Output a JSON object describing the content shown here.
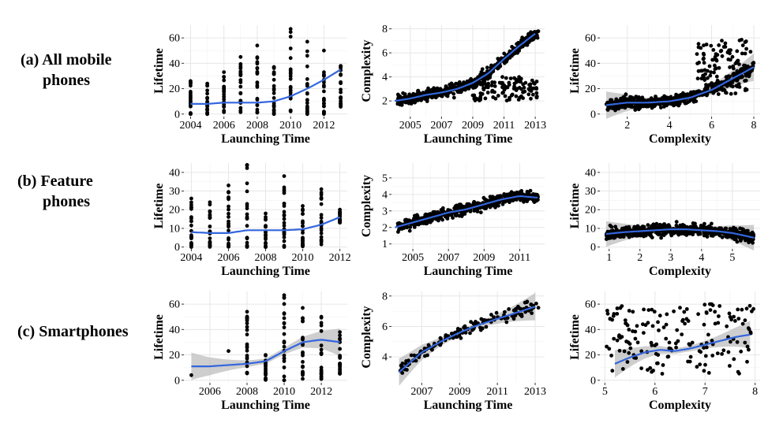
{
  "row_labels": [
    {
      "line1": "(a) All mobile",
      "line2": "phones"
    },
    {
      "line1": "(b) Feature",
      "line2": "phones"
    },
    {
      "line1": "(c) Smartphones",
      "line2": ""
    }
  ],
  "colors": {
    "points": "#000000",
    "smooth": "#3366dd",
    "band": "#bdbdbd",
    "panel_bg": "#ffffff",
    "grid": "#e6e6e6",
    "axis": "#333333"
  },
  "chart_data": [
    {
      "id": "a1",
      "type": "scatter",
      "xlabel": "Launching Time",
      "ylabel": "Lifetime",
      "xlim": [
        2003.6,
        2013.4
      ],
      "ylim": [
        -2,
        70
      ],
      "xticks": [
        2004,
        2006,
        2008,
        2010,
        2012
      ],
      "yticks": [
        0,
        20,
        40,
        60
      ],
      "x": [
        2004,
        2005,
        2006,
        2007,
        2008,
        2009,
        2010,
        2011,
        2012,
        2013
      ],
      "y_range": [
        [
          0,
          26
        ],
        [
          0,
          24
        ],
        [
          0,
          33
        ],
        [
          0,
          45
        ],
        [
          0,
          54
        ],
        [
          0,
          37
        ],
        [
          0,
          67
        ],
        [
          0,
          57
        ],
        [
          0,
          50
        ],
        [
          5,
          38
        ]
      ],
      "smooth": {
        "x": [
          2004,
          2005,
          2006,
          2007,
          2008,
          2009,
          2010,
          2011,
          2012,
          2013
        ],
        "y": [
          8,
          8,
          9,
          9,
          9,
          10,
          14,
          20,
          27,
          35
        ]
      },
      "band": false
    },
    {
      "id": "a2",
      "type": "scatter",
      "xlabel": "Launching Time",
      "ylabel": "Complexity",
      "xlim": [
        2003.8,
        2013.6
      ],
      "ylim": [
        0.7,
        8.3
      ],
      "xticks": [
        2005,
        2007,
        2009,
        2011,
        2013
      ],
      "yticks": [
        2,
        4,
        6,
        8
      ],
      "smooth": {
        "x": [
          2004,
          2005,
          2006,
          2007,
          2008,
          2009,
          2010,
          2011,
          2012,
          2013
        ],
        "y": [
          2.0,
          2.2,
          2.5,
          2.7,
          3.0,
          3.5,
          4.3,
          5.5,
          6.6,
          7.6
        ]
      },
      "band": false
    },
    {
      "id": "a3",
      "type": "scatter",
      "xlabel": "Complexity",
      "ylabel": "Lifetime",
      "xlim": [
        0.7,
        8.3
      ],
      "ylim": [
        -2,
        70
      ],
      "xticks": [
        2,
        4,
        6,
        8
      ],
      "yticks": [
        0,
        20,
        40,
        60
      ],
      "smooth": {
        "x": [
          1,
          2,
          3,
          4,
          5,
          6,
          7,
          8
        ],
        "y": [
          7,
          9,
          9,
          10,
          13,
          19,
          28,
          37
        ]
      },
      "band": true
    },
    {
      "id": "b1",
      "type": "scatter",
      "xlabel": "Launching Time",
      "ylabel": "Lifetime",
      "xlim": [
        2003.6,
        2012.4
      ],
      "ylim": [
        -1,
        45
      ],
      "xticks": [
        2004,
        2006,
        2008,
        2010,
        2012
      ],
      "yticks": [
        0,
        10,
        20,
        30,
        40
      ],
      "x": [
        2004,
        2005,
        2006,
        2007,
        2008,
        2009,
        2010,
        2011,
        2012
      ],
      "y_range": [
        [
          0,
          26
        ],
        [
          0,
          24
        ],
        [
          0,
          33
        ],
        [
          0,
          44
        ],
        [
          0,
          18
        ],
        [
          0,
          38
        ],
        [
          0,
          22
        ],
        [
          0,
          31
        ],
        [
          13,
          20
        ]
      ],
      "smooth": {
        "x": [
          2004,
          2005,
          2006,
          2007,
          2008,
          2009,
          2010,
          2011,
          2012
        ],
        "y": [
          8,
          7.5,
          7.5,
          9,
          9,
          9,
          9.5,
          12,
          16
        ]
      },
      "band": false
    },
    {
      "id": "b2",
      "type": "scatter",
      "xlabel": "Launching Time",
      "ylabel": "Complexity",
      "xlim": [
        2003.8,
        2012.4
      ],
      "ylim": [
        0.7,
        5.9
      ],
      "xticks": [
        2005,
        2007,
        2009,
        2011
      ],
      "yticks": [
        1,
        2,
        3,
        4,
        5
      ],
      "smooth": {
        "x": [
          2004,
          2005,
          2006,
          2007,
          2008,
          2009,
          2010,
          2011,
          2012
        ],
        "y": [
          2.0,
          2.3,
          2.6,
          2.9,
          3.1,
          3.4,
          3.7,
          3.9,
          3.8
        ]
      },
      "band": false
    },
    {
      "id": "b3",
      "type": "scatter",
      "xlabel": "Complexity",
      "ylabel": "Lifetime",
      "xlim": [
        0.7,
        5.9
      ],
      "ylim": [
        -1,
        45
      ],
      "xticks": [
        1,
        2,
        3,
        4,
        5
      ],
      "yticks": [
        0,
        10,
        20,
        30,
        40
      ],
      "smooth": {
        "x": [
          0.9,
          1.5,
          2,
          2.5,
          3,
          3.5,
          4,
          4.5,
          5,
          5.7
        ],
        "y": [
          7,
          8,
          8.5,
          9,
          9.5,
          9.5,
          9,
          8.5,
          7.5,
          5
        ]
      },
      "band": true
    },
    {
      "id": "c1",
      "type": "scatter",
      "xlabel": "Launching Time",
      "ylabel": "Lifetime",
      "xlim": [
        2004.6,
        2013.4
      ],
      "ylim": [
        -2,
        70
      ],
      "xticks": [
        2006,
        2008,
        2010,
        2012
      ],
      "yticks": [
        0,
        20,
        40,
        60
      ],
      "x": [
        2005,
        2007,
        2008,
        2009,
        2010,
        2011,
        2012,
        2013
      ],
      "y_range": [
        [
          4,
          4
        ],
        [
          23,
          23
        ],
        [
          5,
          54
        ],
        [
          0,
          20
        ],
        [
          0,
          67
        ],
        [
          0,
          57
        ],
        [
          0,
          50
        ],
        [
          5,
          38
        ]
      ],
      "smooth": {
        "x": [
          2005,
          2006,
          2007,
          2008,
          2009,
          2010,
          2011,
          2012,
          2013
        ],
        "y": [
          11,
          11,
          12,
          13,
          15,
          23,
          30,
          32,
          30
        ]
      },
      "band": true
    },
    {
      "id": "c2",
      "type": "scatter",
      "xlabel": "Launching Time",
      "ylabel": "Complexity",
      "xlim": [
        2005.4,
        2013.5
      ],
      "ylim": [
        2.3,
        8.3
      ],
      "xticks": [
        2007,
        2009,
        2011,
        2013
      ],
      "yticks": [
        4,
        6,
        8
      ],
      "smooth": {
        "x": [
          2005.8,
          2007,
          2008,
          2009,
          2010,
          2011,
          2012,
          2013
        ],
        "y": [
          3.0,
          4.3,
          5.0,
          5.6,
          6.1,
          6.5,
          6.9,
          7.3
        ]
      },
      "band": true
    },
    {
      "id": "c3",
      "type": "scatter",
      "xlabel": "Complexity",
      "ylabel": "Lifetime",
      "xlim": [
        4.9,
        8.1
      ],
      "ylim": [
        -2,
        70
      ],
      "xticks": [
        5,
        6,
        7,
        8
      ],
      "yticks": [
        0,
        20,
        40,
        60
      ],
      "smooth": {
        "x": [
          5.2,
          5.5,
          5.8,
          6.1,
          6.4,
          6.7,
          7.0,
          7.3,
          7.6,
          7.9
        ],
        "y": [
          13,
          18,
          22,
          24,
          23,
          25,
          28,
          31,
          34,
          36
        ]
      },
      "band": true
    }
  ]
}
